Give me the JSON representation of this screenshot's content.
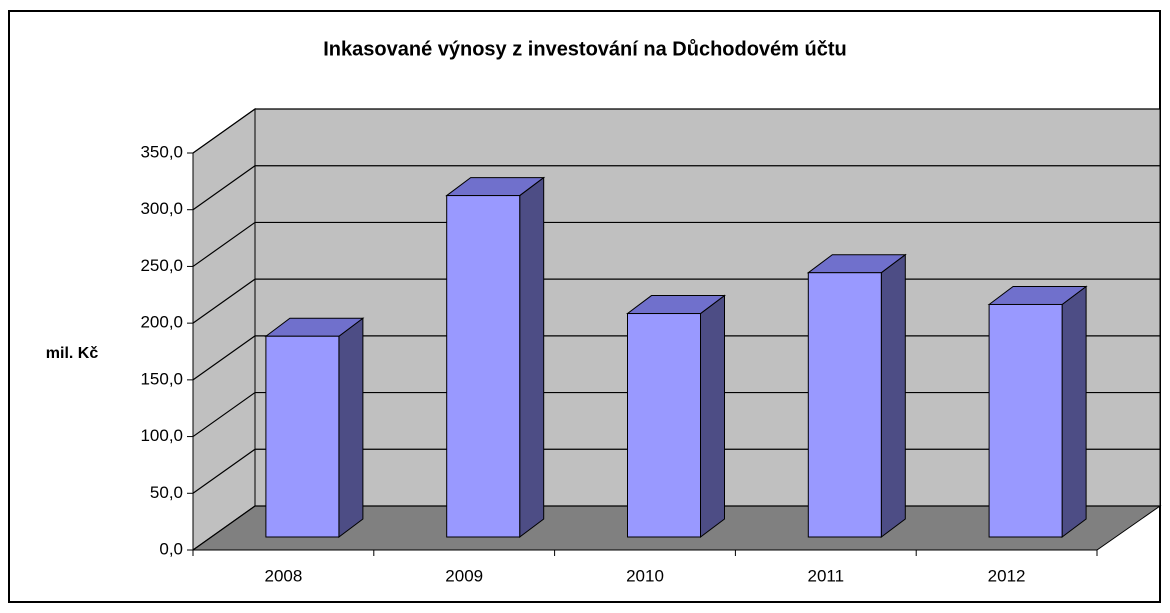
{
  "chart_data": {
    "type": "bar3d",
    "title": "Inkasované výnosy z investování na Důchodovém účtu",
    "y_label": "mil. Kč",
    "categories": [
      "2008",
      "2009",
      "2010",
      "2011",
      "2012"
    ],
    "values": [
      177,
      301,
      197,
      233,
      205
    ],
    "color": "#9999ff",
    "ylim": [
      0,
      350
    ],
    "yticks": [
      {
        "value": 0,
        "label": "0,0"
      },
      {
        "value": 50,
        "label": "50,0"
      },
      {
        "value": 100,
        "label": "100,0"
      },
      {
        "value": 150,
        "label": "150,0"
      },
      {
        "value": 200,
        "label": "200,0"
      },
      {
        "value": 250,
        "label": "250,0"
      },
      {
        "value": 300,
        "label": "300,0"
      },
      {
        "value": 350,
        "label": "350,0"
      }
    ],
    "grid": true
  }
}
